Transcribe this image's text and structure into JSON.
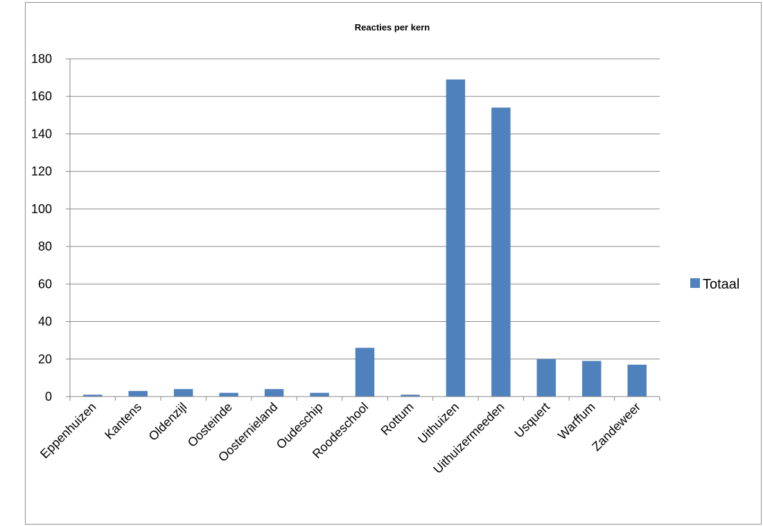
{
  "chart_data": {
    "type": "bar",
    "title": "Reacties per kern",
    "xlabel": "",
    "ylabel": "",
    "categories": [
      "Eppenhuizen",
      "Kantens",
      "Oldenzijl",
      "Oosteinde",
      "Oosternieland",
      "Oudeschip",
      "Roodeschool",
      "Rottum",
      "Uithuizen",
      "Uithuizermeeden",
      "Usquert",
      "Warffum",
      "Zandeweer"
    ],
    "series": [
      {
        "name": "Totaal",
        "values": [
          1,
          3,
          4,
          2,
          4,
          2,
          26,
          1,
          169,
          154,
          20,
          19,
          17
        ]
      }
    ],
    "ylim": [
      0,
      180
    ],
    "yticks": [
      0,
      20,
      40,
      60,
      80,
      100,
      120,
      140,
      160,
      180
    ],
    "grid": true,
    "legend_position": "right",
    "bar_color": "#4f81bd",
    "grid_color": "#868686"
  }
}
